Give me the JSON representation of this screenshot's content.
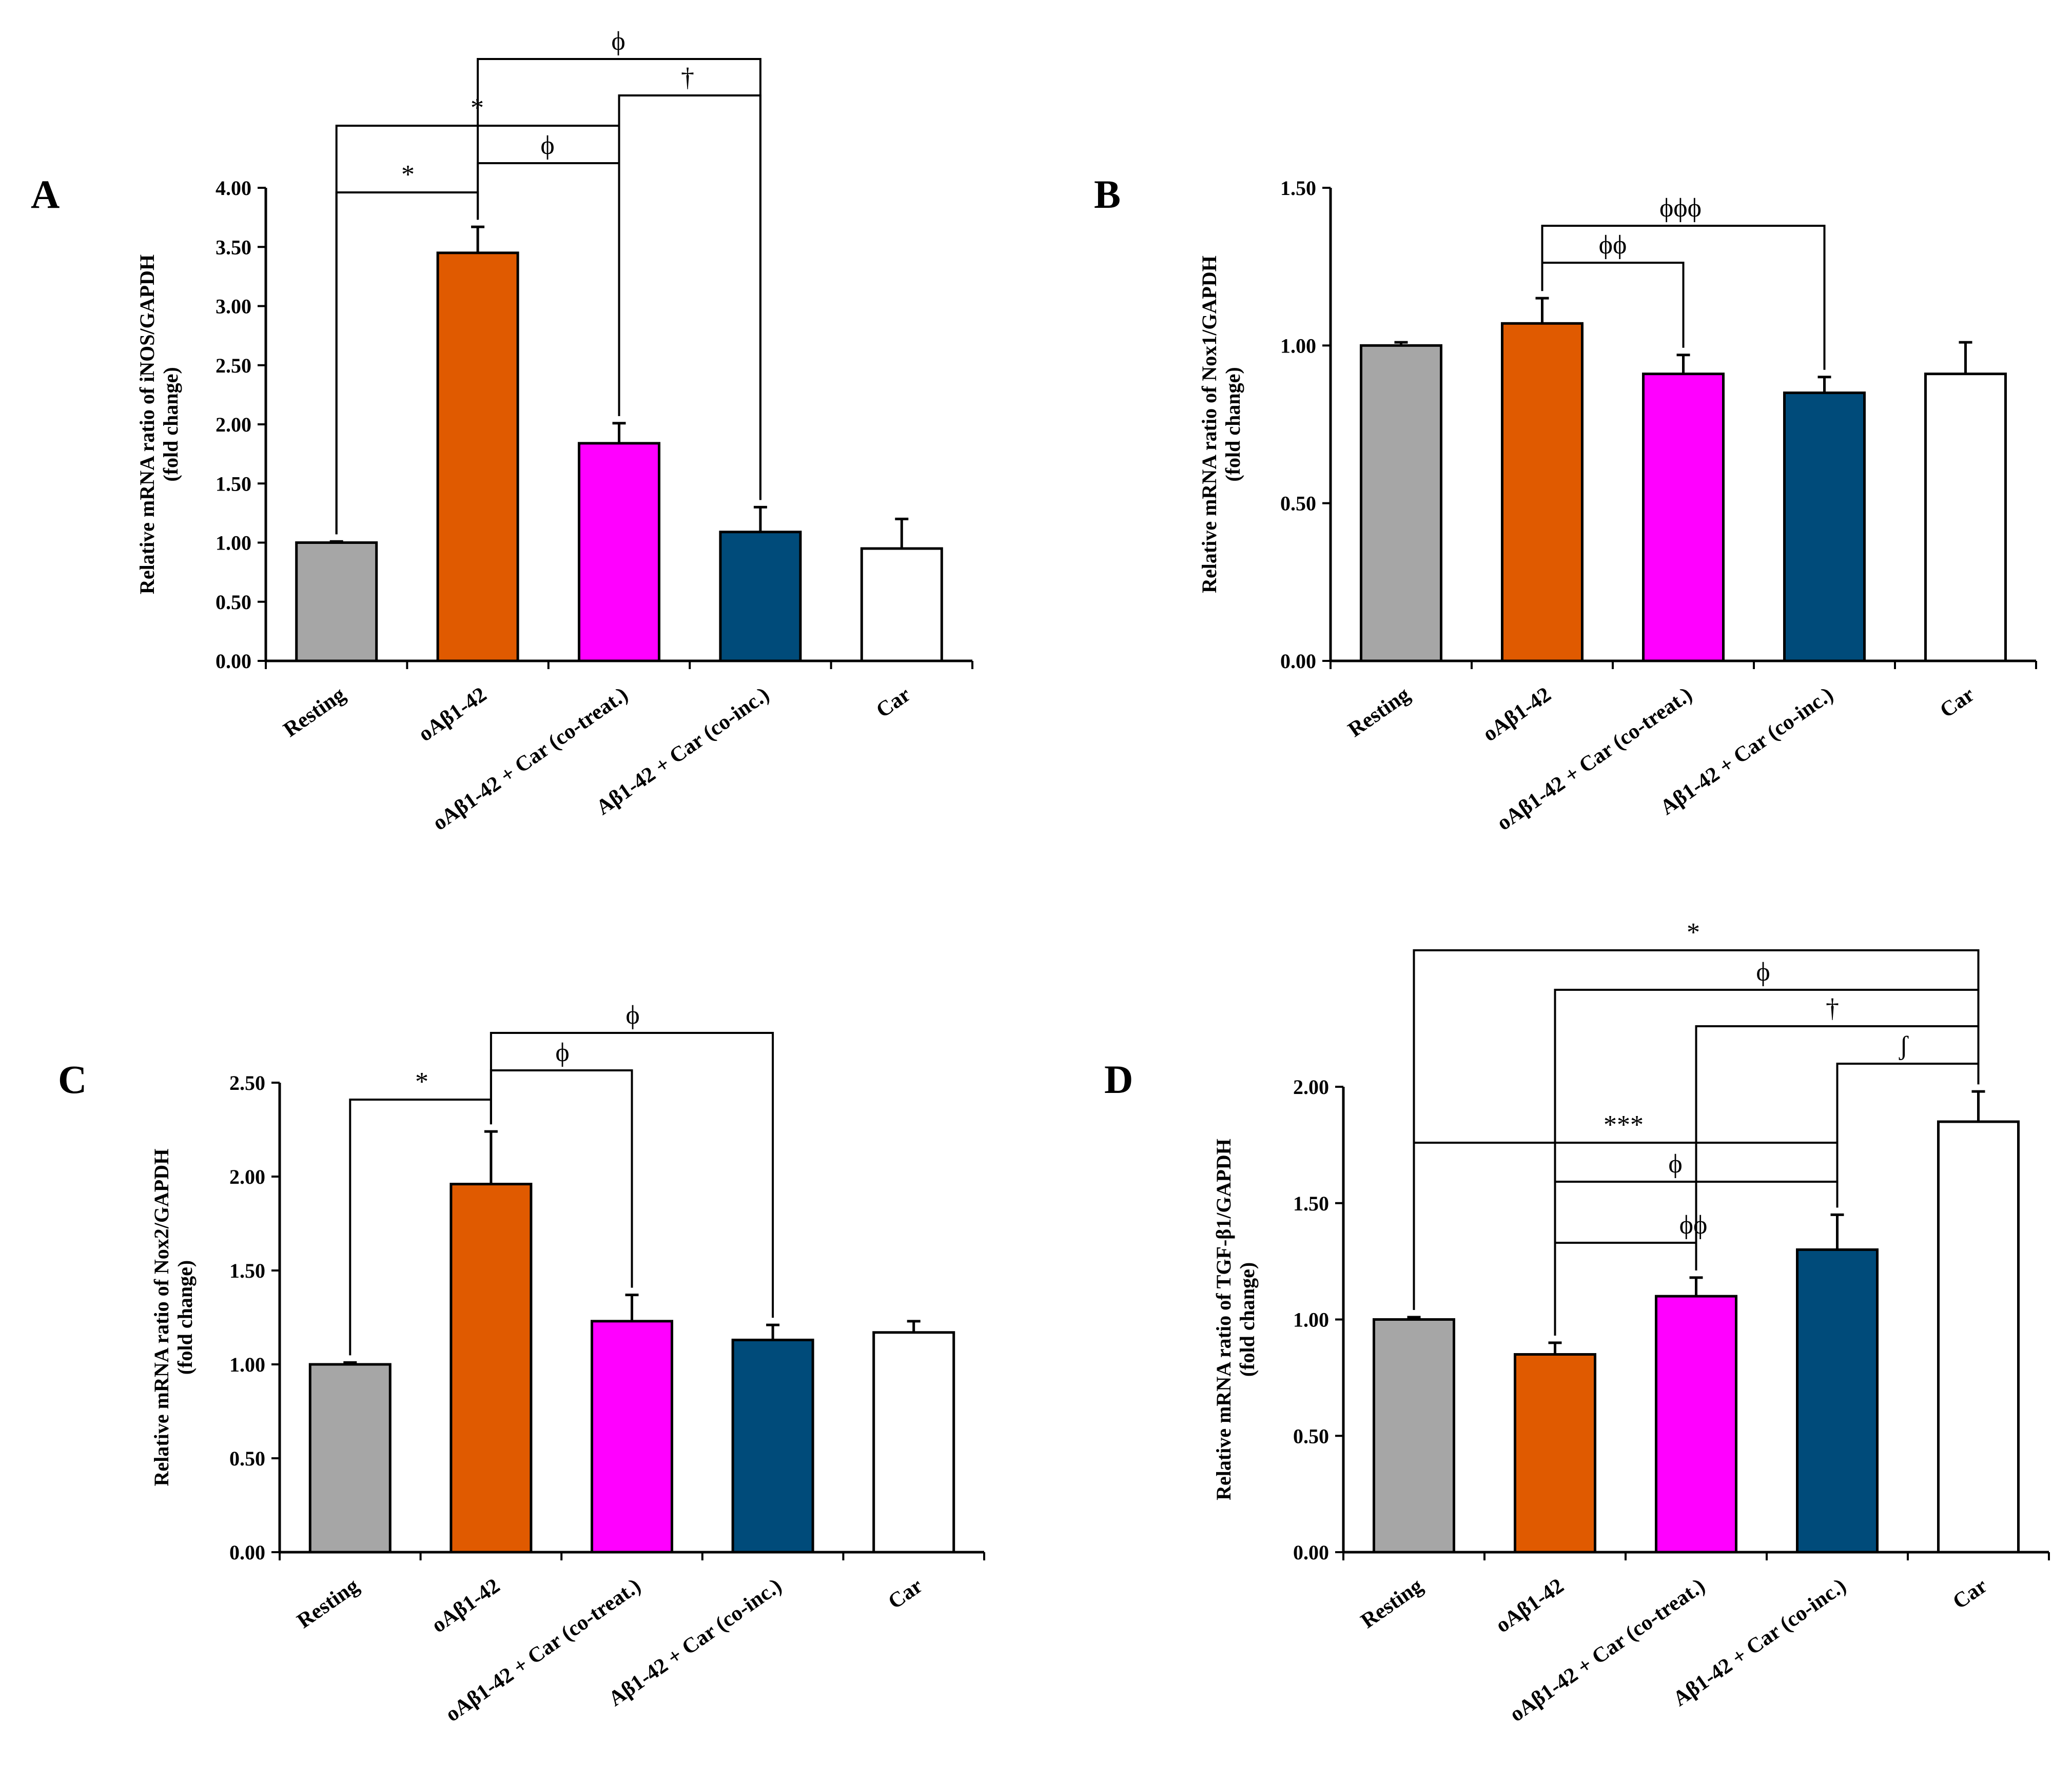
{
  "chart_data": [
    {
      "type": "bar",
      "panel": "A",
      "categories": [
        "Resting",
        "oAβ1-42",
        "oAβ1-42 + Car (co-treat.)",
        "Aβ1-42 + Car (co-inc.)",
        "Car"
      ],
      "values": [
        1.0,
        3.45,
        1.84,
        1.09,
        0.95
      ],
      "errors": [
        0.01,
        0.22,
        0.17,
        0.21,
        0.25
      ],
      "colors": [
        "#a6a6a6",
        "#e05a00",
        "#ff00ff",
        "#004b7a",
        "#ffffff"
      ],
      "ylabel": [
        "Relative mRNA ratio of iNOS/GAPDH",
        "(fold change)"
      ],
      "ylim": [
        0,
        4
      ],
      "yticks": [
        "0.00",
        "0.50",
        "1.00",
        "1.50",
        "2.00",
        "2.50",
        "3.00",
        "3.50",
        "4.00"
      ],
      "grid": false,
      "significance": [
        {
          "from": 0,
          "to": 1,
          "label": "*"
        },
        {
          "from": 1,
          "to": 2,
          "label": "ϕ"
        },
        {
          "from": 0,
          "to": 2,
          "label": "*"
        },
        {
          "from": 2,
          "to": 3,
          "label": "†"
        },
        {
          "from": 1,
          "to": 3,
          "label": "ϕ"
        }
      ]
    },
    {
      "type": "bar",
      "panel": "B",
      "categories": [
        "Resting",
        "oAβ1-42",
        "oAβ1-42 + Car (co-treat.)",
        "Aβ1-42 + Car (co-inc.)",
        "Car"
      ],
      "values": [
        1.0,
        1.07,
        0.91,
        0.85,
        0.91
      ],
      "errors": [
        0.01,
        0.08,
        0.06,
        0.05,
        0.1
      ],
      "colors": [
        "#a6a6a6",
        "#e05a00",
        "#ff00ff",
        "#004b7a",
        "#ffffff"
      ],
      "ylabel": [
        "Relative mRNA ratio of Nox1/GAPDH",
        "(fold change)"
      ],
      "ylim": [
        0,
        1.5
      ],
      "yticks": [
        "0.00",
        "0.50",
        "1.00",
        "1.50"
      ],
      "grid": false,
      "significance": [
        {
          "from": 1,
          "to": 2,
          "label": "ϕϕ"
        },
        {
          "from": 1,
          "to": 3,
          "label": "ϕϕϕ"
        }
      ]
    },
    {
      "type": "bar",
      "panel": "C",
      "categories": [
        "Resting",
        "oAβ1-42",
        "oAβ1-42 + Car (co-treat.)",
        "Aβ1-42 + Car (co-inc.)",
        "Car"
      ],
      "values": [
        1.0,
        1.96,
        1.23,
        1.13,
        1.17
      ],
      "errors": [
        0.01,
        0.28,
        0.14,
        0.08,
        0.06
      ],
      "colors": [
        "#a6a6a6",
        "#e05a00",
        "#ff00ff",
        "#004b7a",
        "#ffffff"
      ],
      "ylabel": [
        "Relative mRNA ratio of Nox2/GAPDH",
        "(fold change)"
      ],
      "ylim": [
        0,
        2.5
      ],
      "yticks": [
        "0.00",
        "0.50",
        "1.00",
        "1.50",
        "2.00",
        "2.50"
      ],
      "grid": false,
      "significance": [
        {
          "from": 0,
          "to": 1,
          "label": "*"
        },
        {
          "from": 1,
          "to": 2,
          "label": "ϕ"
        },
        {
          "from": 1,
          "to": 3,
          "label": "ϕ"
        }
      ]
    },
    {
      "type": "bar",
      "panel": "D",
      "categories": [
        "Resting",
        "oAβ1-42",
        "oAβ1-42 + Car (co-treat.)",
        "Aβ1-42 + Car (co-inc.)",
        "Car"
      ],
      "values": [
        1.0,
        0.85,
        1.1,
        1.3,
        1.85
      ],
      "errors": [
        0.01,
        0.05,
        0.08,
        0.15,
        0.13
      ],
      "colors": [
        "#a6a6a6",
        "#e05a00",
        "#ff00ff",
        "#004b7a",
        "#ffffff"
      ],
      "ylabel": [
        "Relative mRNA ratio of TGF-β1/GAPDH",
        "(fold change)"
      ],
      "ylim": [
        0,
        2
      ],
      "yticks": [
        "0.00",
        "0.50",
        "1.00",
        "1.50",
        "2.00"
      ],
      "grid": false,
      "significance": [
        {
          "from": 1,
          "to": 2,
          "label": "ϕϕ"
        },
        {
          "from": 1,
          "to": 3,
          "label": "ϕ"
        },
        {
          "from": 0,
          "to": 3,
          "label": "***"
        },
        {
          "from": 3,
          "to": 4,
          "label": "ʃ"
        },
        {
          "from": 2,
          "to": 4,
          "label": "†"
        },
        {
          "from": 1,
          "to": 4,
          "label": "ϕ"
        },
        {
          "from": 0,
          "to": 4,
          "label": "*"
        }
      ]
    }
  ]
}
